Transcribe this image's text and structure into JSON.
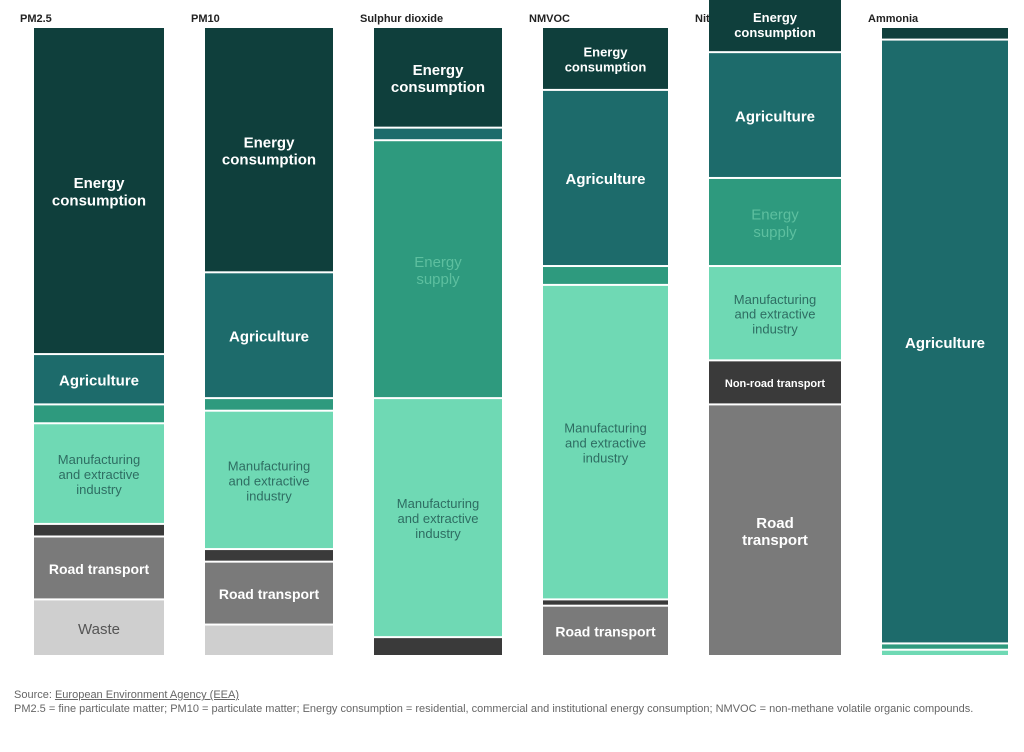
{
  "colors": {
    "energy_consumption": "#0f3f3c",
    "agriculture": "#1d6b6b",
    "energy_supply": "#2e9a7e",
    "manufacturing": "#6fd9b4",
    "non_road_transport": "#3a3a3a",
    "road_transport": "#7a7a7a",
    "waste": "#cfcfcf",
    "other_light": "#3a8a7f"
  },
  "chart_data": {
    "type": "bar",
    "stacked": true,
    "normalized": true,
    "unit": "share of total emissions",
    "categories": [
      "PM2.5",
      "PM10",
      "Sulphur dioxide",
      "NMVOC",
      "Nitrogen oxides",
      "Ammonia"
    ],
    "series": [
      {
        "key": "waste",
        "label": "Waste",
        "values": [
          0.09,
          0.05,
          0.0,
          0.0,
          0.0,
          0.0
        ]
      },
      {
        "key": "road_transport",
        "label": "Road transport",
        "values": [
          0.1,
          0.1,
          0.0,
          0.08,
          0.4,
          0.0
        ]
      },
      {
        "key": "non_road_transport",
        "label": "Non-road transport",
        "values": [
          0.02,
          0.02,
          0.03,
          0.01,
          0.07,
          0.0
        ]
      },
      {
        "key": "manufacturing",
        "label": "Manufacturing and extractive industry",
        "values": [
          0.16,
          0.22,
          0.38,
          0.5,
          0.15,
          0.01
        ]
      },
      {
        "key": "energy_supply",
        "label": "Energy supply",
        "values": [
          0.03,
          0.02,
          0.41,
          0.03,
          0.14,
          0.01
        ]
      },
      {
        "key": "agriculture",
        "label": "Agriculture",
        "values": [
          0.08,
          0.2,
          0.02,
          0.28,
          0.2,
          0.96
        ]
      },
      {
        "key": "energy_consumption",
        "label": "Energy consumption",
        "values": [
          0.52,
          0.39,
          0.16,
          0.1,
          0.09,
          0.02
        ]
      }
    ],
    "shown_labels": [
      [
        "Waste",
        "Road transport",
        "",
        "Manufacturing\nand extractive\nindustry",
        "",
        "Agriculture",
        "Energy\nconsumption"
      ],
      [
        "",
        "Road transport",
        "",
        "Manufacturing\nand extractive\nindustry",
        "",
        "Agriculture",
        "Energy\nconsumption"
      ],
      [
        "",
        "",
        "",
        "Manufacturing\nand extractive\nindustry",
        "Energy\nsupply",
        "",
        "Energy\nconsumption"
      ],
      [
        "",
        "Road transport",
        "",
        "Manufacturing\nand extractive\nindustry",
        "",
        "Agriculture",
        "Energy\nconsumption"
      ],
      [
        "",
        "Road\ntransport",
        "Non-road transport",
        "Manufacturing\nand extractive\nindustry",
        "Energy\nsupply",
        "Agriculture",
        "Energy\nconsumption"
      ],
      [
        "",
        "",
        "",
        "",
        "",
        "Agriculture",
        ""
      ]
    ]
  },
  "footer": {
    "source_prefix": "Source: ",
    "source_link": "European Environment Agency (EEA)",
    "note": "PM2.5 = fine particulate matter; PM10 = particulate matter; Energy consumption = residential, commercial and institutional energy consumption; NMVOC = non-methane volatile organic compounds."
  }
}
